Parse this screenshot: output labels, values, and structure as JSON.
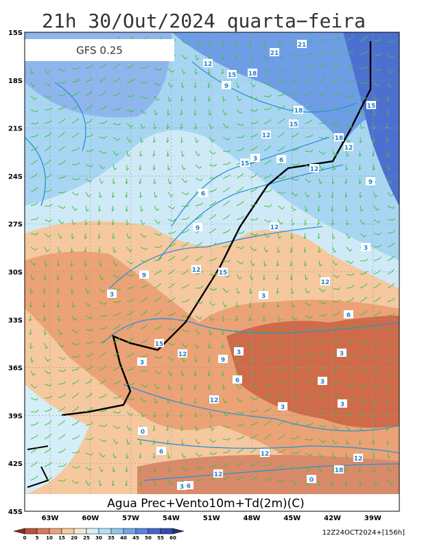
{
  "header": {
    "title": "21h 30/Out/2024 quarta−feira",
    "model": "GFS 0.25"
  },
  "map": {
    "lat_labels": [
      "15S",
      "18S",
      "21S",
      "24S",
      "27S",
      "30S",
      "33S",
      "36S",
      "39S",
      "42S",
      "45S"
    ],
    "lon_labels": [
      "63W",
      "60W",
      "57W",
      "54W",
      "51W",
      "48W",
      "45W",
      "42W",
      "39W"
    ],
    "contour_labels": [
      "21",
      "21",
      "18",
      "12",
      "15",
      "9",
      "15",
      "18",
      "12",
      "15",
      "12",
      "18",
      "9",
      "12",
      "15",
      "6",
      "3",
      "12",
      "3",
      "6",
      "9",
      "12",
      "3",
      "3",
      "9",
      "12",
      "3",
      "6",
      "3",
      "12",
      "15",
      "12",
      "3",
      "3",
      "3",
      "6",
      "12",
      "0",
      "6",
      "12",
      "0",
      "3",
      "6",
      "12",
      "9",
      "15",
      "3",
      "18"
    ],
    "footer": "Agua Prec+Vento10m+Td(2m)(C)"
  },
  "colorbar": {
    "ticks": [
      0,
      5,
      10,
      15,
      20,
      25,
      30,
      35,
      40,
      45,
      50,
      55,
      60
    ],
    "colors": [
      "#7a3318",
      "#b8523a",
      "#d97a55",
      "#eda277",
      "#f6c9a0",
      "#f3e6d2",
      "#d6eef7",
      "#b2dff4",
      "#8cc7ee",
      "#6ea8e8",
      "#5585dd",
      "#4466cc",
      "#354aac",
      "#23337a"
    ]
  },
  "run_label": "12Z24OCT2024+[156h]"
}
